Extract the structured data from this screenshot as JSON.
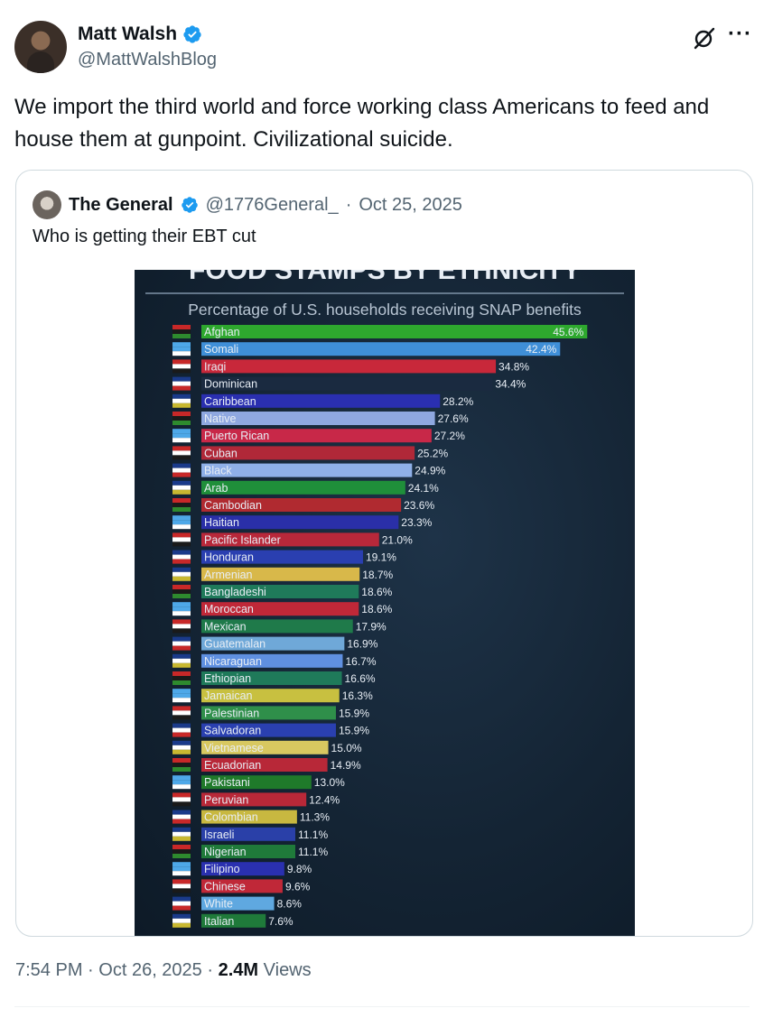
{
  "author": {
    "name": "Matt Walsh",
    "handle": "@MattWalshBlog",
    "verified_icon": "verified-badge-icon",
    "brand_color": "#1d9bf0"
  },
  "tweet": {
    "text": "We import the third world and force working class Americans to feed and house them at gunpoint. Civilizational suicide.",
    "time": "7:54 PM",
    "date": "Oct 26, 2025",
    "views_count": "2.4M",
    "views_label": "Views",
    "sep": "·"
  },
  "quoted": {
    "name": "The General",
    "handle": "@1776General_",
    "date": "Oct 25, 2025",
    "sep": "·",
    "text": "Who is getting their EBT cut"
  },
  "chart_data": {
    "type": "bar",
    "orientation": "horizontal",
    "title": "FOOD STAMPS BY ETHNICITY",
    "subtitle": "Percentage of U.S. households receiving SNAP benefits",
    "unit": "%",
    "xlim": [
      0,
      46
    ],
    "categories": [
      "Afghan",
      "Somali",
      "Iraqi",
      "Dominican",
      "Caribbean",
      "Native",
      "Puerto Rican",
      "Cuban",
      "Black",
      "Arab",
      "Cambodian",
      "Haitian",
      "Pacific Islander",
      "Honduran",
      "Armenian",
      "Bangladeshi",
      "Moroccan",
      "Mexican",
      "Guatemalan",
      "Nicaraguan",
      "Ethiopian",
      "Jamaican",
      "Palestinian",
      "Salvadoran",
      "Vietnamese",
      "Ecuadorian",
      "Pakistani",
      "Peruvian",
      "Colombian",
      "Israeli",
      "Nigerian",
      "Filipino",
      "Chinese",
      "White",
      "Italian"
    ],
    "values": [
      45.6,
      42.4,
      34.8,
      34.4,
      28.2,
      27.6,
      27.2,
      25.2,
      24.9,
      24.1,
      23.6,
      23.3,
      21.0,
      19.1,
      18.7,
      18.6,
      18.6,
      17.9,
      16.9,
      16.7,
      16.6,
      16.3,
      15.9,
      15.9,
      15.0,
      14.9,
      13.0,
      12.4,
      11.3,
      11.1,
      11.1,
      9.8,
      9.6,
      8.6,
      7.6
    ],
    "labels": [
      "45.6%",
      "42.4%",
      "34.8%",
      "34.4%",
      "28.2%",
      "27.6%",
      "27.2%",
      "25.2%",
      "24.9%",
      "24.1%",
      "23.6%",
      "23.3%",
      "21.0%",
      "19.1%",
      "18.7%",
      "18.6%",
      "18.6%",
      "17.9%",
      "16.9%",
      "16.7%",
      "16.6%",
      "16.3%",
      "15.9%",
      "15.9%",
      "15.0%",
      "14.9%",
      "13.0%",
      "12.4%",
      "11.3%",
      "11.1%",
      "11.1%",
      "9.8%",
      "9.6%",
      "8.6%",
      "7.6%"
    ],
    "colors": [
      "#2ea82e",
      "#3f8fd8",
      "#c8283a",
      "#1a2a40",
      "#2a2fb0",
      "#8fa8e0",
      "#c82848",
      "#b02838",
      "#8fb0e8",
      "#1f8f3a",
      "#b02a30",
      "#2a2fa8",
      "#b8283a",
      "#2a3fb0",
      "#d8b84a",
      "#1f7a5a",
      "#c02838",
      "#1f7a4a",
      "#6fa8d8",
      "#5f90e0",
      "#1f7a5a",
      "#c8c040",
      "#2f8f4a",
      "#2a40b0",
      "#d8c860",
      "#b82838",
      "#1f7a2a",
      "#b82838",
      "#c8b840",
      "#2a40a8",
      "#1f7a3a",
      "#2a30b0",
      "#c02838",
      "#5fa8e0",
      "#1f7a3a"
    ]
  }
}
